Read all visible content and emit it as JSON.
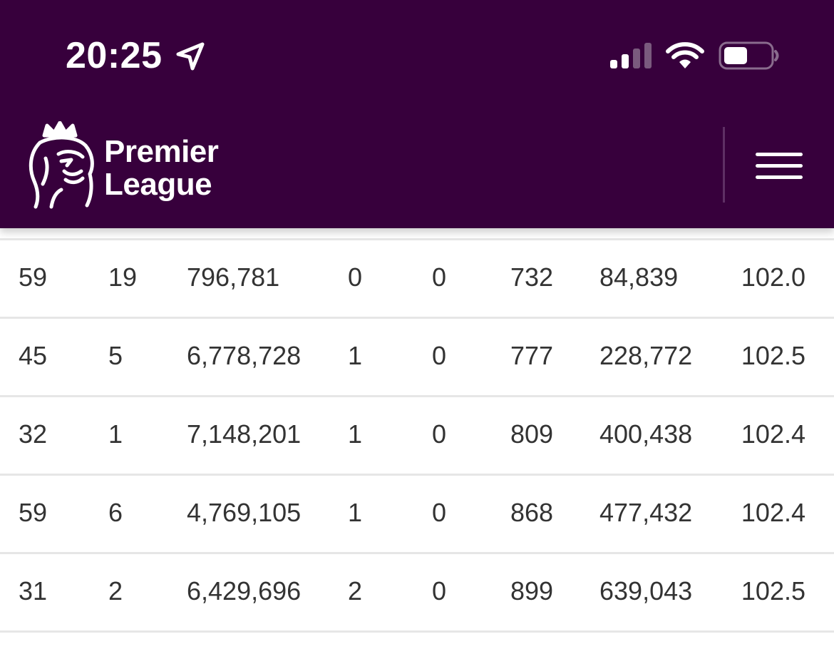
{
  "status_bar": {
    "time": "20:25",
    "location_icon": "location-arrow-icon",
    "signal_icon": "cellular-signal-icon",
    "wifi_icon": "wifi-icon",
    "battery_icon": "battery-icon"
  },
  "header": {
    "logo_line1": "Premier",
    "logo_line2": "League",
    "logo_icon": "lion-crown-icon",
    "menu_icon": "hamburger-menu-icon",
    "background_color": "#37003c"
  },
  "table": {
    "rows": [
      [
        "59",
        "19",
        "796,781",
        "0",
        "0",
        "732",
        "84,839",
        "102.0"
      ],
      [
        "45",
        "5",
        "6,778,728",
        "1",
        "0",
        "777",
        "228,772",
        "102.5"
      ],
      [
        "32",
        "1",
        "7,148,201",
        "1",
        "0",
        "809",
        "400,438",
        "102.4"
      ],
      [
        "59",
        "6",
        "4,769,105",
        "1",
        "0",
        "868",
        "477,432",
        "102.4"
      ],
      [
        "31",
        "2",
        "6,429,696",
        "2",
        "0",
        "899",
        "639,043",
        "102.5"
      ]
    ]
  }
}
